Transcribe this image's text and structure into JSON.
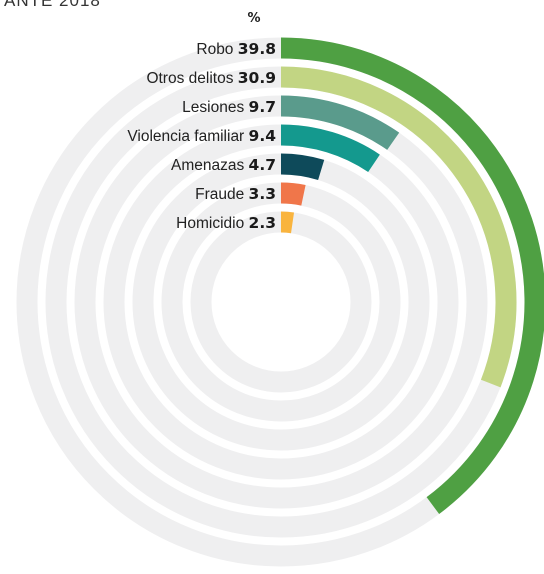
{
  "title_fragment": "ANTE 2018",
  "chart_data": {
    "type": "radial-bar",
    "unit": "%",
    "max": 100,
    "track_color": "#efeff0",
    "categories": [
      "Robo",
      "Otros delitos",
      "Lesiones",
      "Violencia familiar",
      "Amenazas",
      "Fraude",
      "Homicidio"
    ],
    "values": [
      39.8,
      30.9,
      9.7,
      9.4,
      4.7,
      3.3,
      2.3
    ],
    "value_labels": [
      "39.8",
      "30.9",
      "9.7",
      "9.4",
      "4.7",
      "3.3",
      "2.3"
    ],
    "colors": [
      "#4fa043",
      "#c2d583",
      "#5a9b8c",
      "#14998e",
      "#0e4a5a",
      "#f0764a",
      "#f9b43e"
    ]
  }
}
